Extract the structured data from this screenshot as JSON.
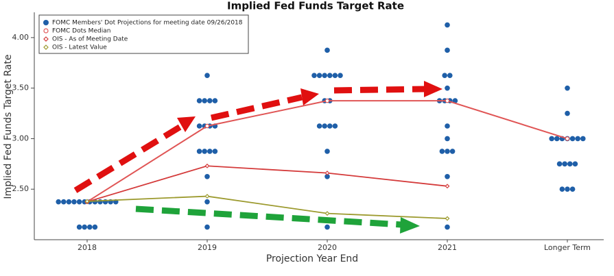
{
  "chart_data": {
    "type": "dot_plot",
    "title": "Implied Fed Funds Target Rate",
    "x_label": "Projection Year End",
    "y_label": "Implied Fed Funds Target Rate",
    "categories": [
      "2018",
      "2019",
      "2020",
      "2021",
      "Longer Term"
    ],
    "ylim": [
      2.0,
      4.25
    ],
    "yticks": [
      {
        "value": 2.5,
        "label": "2.50"
      },
      {
        "value": 3.0,
        "label": "3.00"
      },
      {
        "value": 3.5,
        "label": "3.50"
      },
      {
        "value": 4.0,
        "label": "4.00"
      }
    ],
    "dots": {
      "name": "FOMC Members' Dot Projections for meeting date 09/26/2018",
      "color": "#1f5fa8",
      "values": [
        [
          2.375,
          2.375,
          2.375,
          2.375,
          2.375,
          2.375,
          2.375,
          2.375,
          2.375,
          2.375,
          2.375,
          2.375,
          2.125,
          2.125,
          2.125,
          2.125
        ],
        [
          3.625,
          3.375,
          3.375,
          3.375,
          3.375,
          3.125,
          3.125,
          3.125,
          3.125,
          2.875,
          2.875,
          2.875,
          2.875,
          2.625,
          2.375,
          2.125
        ],
        [
          3.875,
          3.625,
          3.625,
          3.625,
          3.625,
          3.625,
          3.625,
          3.375,
          3.375,
          3.125,
          3.125,
          3.125,
          3.125,
          2.875,
          2.625,
          2.125
        ],
        [
          4.125,
          3.875,
          3.625,
          3.625,
          3.5,
          3.375,
          3.375,
          3.375,
          3.375,
          3.125,
          3.0,
          2.875,
          2.875,
          2.875,
          2.625,
          2.125
        ],
        [
          3.5,
          3.25,
          3.0,
          3.0,
          3.0,
          3.0,
          3.0,
          3.0,
          3.0,
          2.75,
          2.75,
          2.75,
          2.75,
          2.5,
          2.5,
          2.5
        ]
      ]
    },
    "series": [
      {
        "name": "FOMC Dots Median",
        "color": "#e05555",
        "marker": "circle",
        "values": [
          2.375,
          3.125,
          3.375,
          3.375,
          3.0
        ]
      },
      {
        "name": "OIS - As of Meeting Date",
        "color": "#d43a3a",
        "marker": "diamond",
        "values": [
          2.375,
          2.73,
          2.66,
          2.53,
          null
        ]
      },
      {
        "name": "OIS - Latest Value",
        "color": "#9c9a2e",
        "marker": "diamond",
        "values": [
          2.38,
          2.43,
          2.26,
          2.21,
          null
        ]
      }
    ]
  }
}
